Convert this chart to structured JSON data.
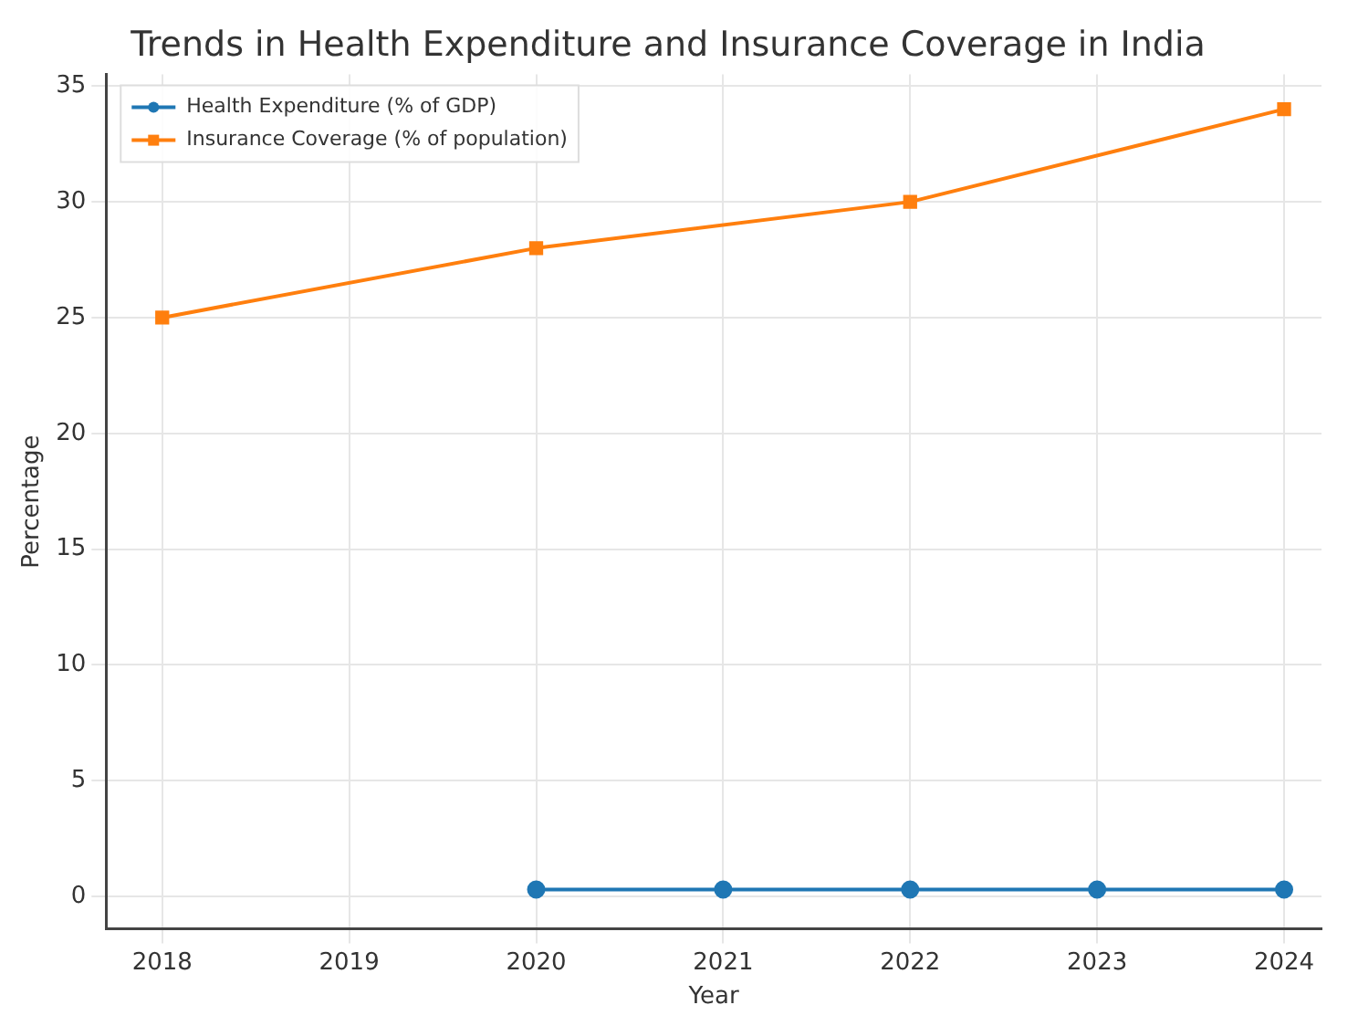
{
  "chart_data": {
    "type": "line",
    "title": "Trends in Health Expenditure and Insurance Coverage in India",
    "xlabel": "Year",
    "ylabel": "Percentage",
    "series": [
      {
        "name": "Health Expenditure (% of GDP)",
        "color": "#1f77b4",
        "marker": "circle",
        "x": [
          2020,
          2021,
          2022,
          2023,
          2024
        ],
        "values": [
          0.3,
          0.3,
          0.3,
          0.3,
          0.3
        ]
      },
      {
        "name": "Insurance Coverage (% of population)",
        "color": "#ff7f0e",
        "marker": "square",
        "x": [
          2018,
          2020,
          2022,
          2024
        ],
        "values": [
          25,
          28,
          30,
          34
        ]
      }
    ],
    "xlim": [
      2017.7,
      2024.2
    ],
    "xticks": [
      2018,
      2019,
      2020,
      2021,
      2022,
      2023,
      2024
    ],
    "ylim": [
      -1.4,
      35.5
    ],
    "yticks": [
      0,
      5,
      10,
      15,
      20,
      25,
      30,
      35
    ],
    "grid": true,
    "legend": "top left",
    "line_style": "solid"
  }
}
